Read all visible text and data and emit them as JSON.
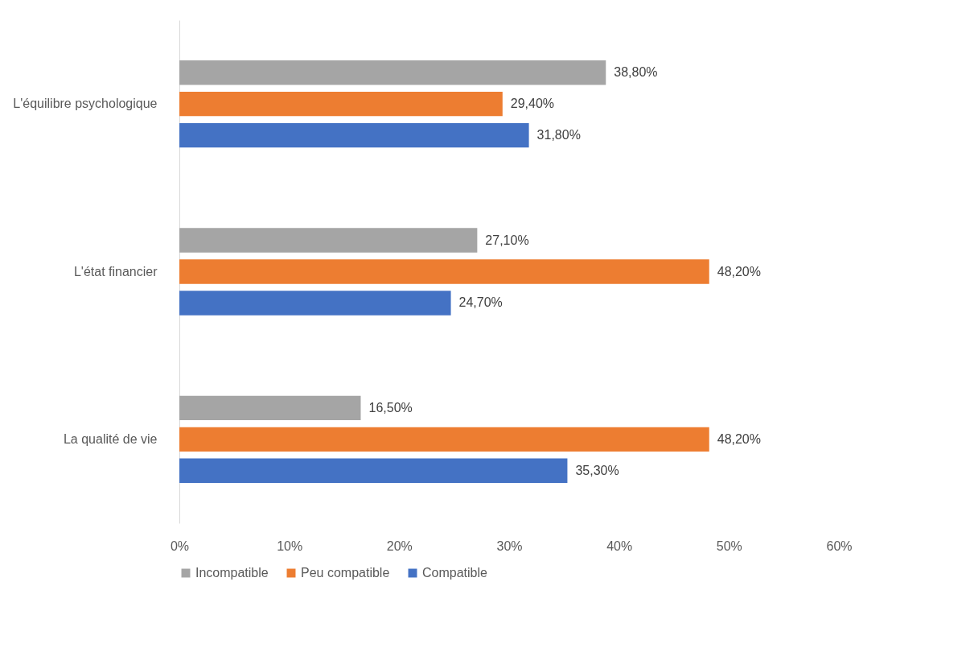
{
  "chart_data": {
    "type": "bar",
    "orientation": "horizontal",
    "categories": [
      "L'équilibre psychologique",
      "L'état financier",
      "La qualité de vie"
    ],
    "series": [
      {
        "name": "Incompatible",
        "color": "#a5a5a5",
        "values": [
          38.8,
          27.1,
          16.5
        ],
        "value_labels": [
          "38,80%",
          "27,10%",
          "16,50%"
        ]
      },
      {
        "name": "Peu compatible",
        "color": "#ed7d31",
        "values": [
          29.4,
          48.2,
          48.2
        ],
        "value_labels": [
          "29,40%",
          "48,20%",
          "48,20%"
        ]
      },
      {
        "name": "Compatible",
        "color": "#4472c4",
        "values": [
          31.8,
          24.7,
          35.3
        ],
        "value_labels": [
          "31,80%",
          "24,70%",
          "35,30%"
        ]
      }
    ],
    "xlim": [
      0,
      60
    ],
    "xticks": [
      {
        "value": 0,
        "label": "0%"
      },
      {
        "value": 10,
        "label": "10%"
      },
      {
        "value": 20,
        "label": "20%"
      },
      {
        "value": 30,
        "label": "30%"
      },
      {
        "value": 40,
        "label": "40%"
      },
      {
        "value": 50,
        "label": "50%"
      },
      {
        "value": 60,
        "label": "60%"
      }
    ],
    "grid": false,
    "legend": "bottom"
  }
}
